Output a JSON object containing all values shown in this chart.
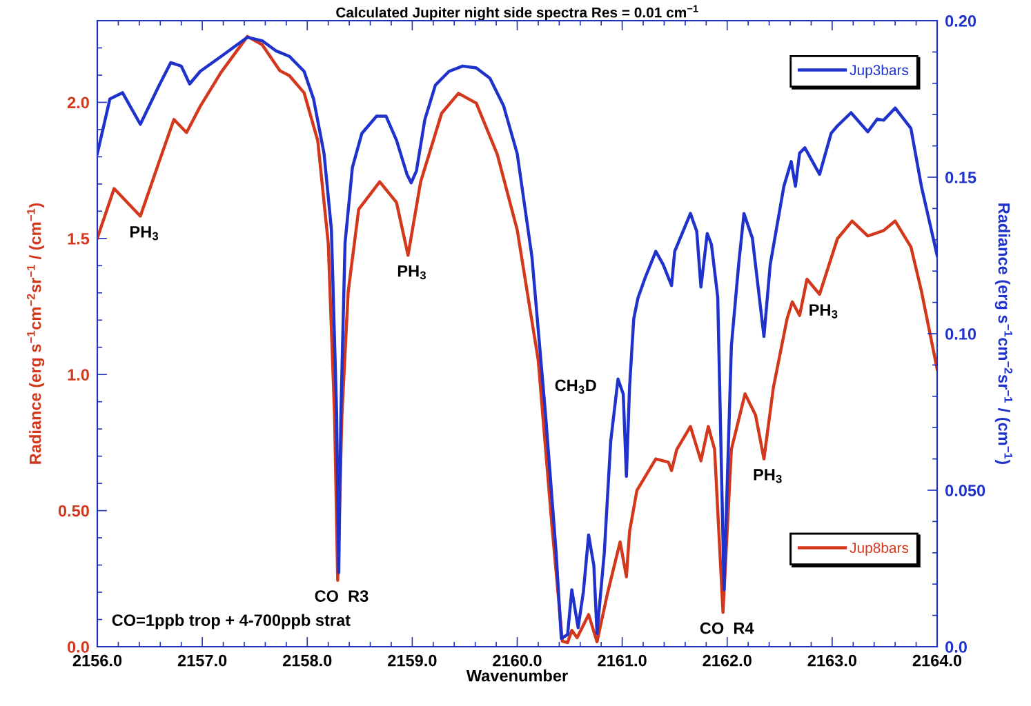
{
  "chart_data": {
    "type": "line",
    "title": "Calculated Jupiter night side spectra Res = 0.01 cm$^{−1}$",
    "xlabel": "Wavenumber",
    "ylabel": "Radiance (erg s$^{−1}$cm$^{−2}$sr$^{−1}$ / (cm$^{−1}$)",
    "y2label": "Radiance (erg s$^{−1}$cm$^{−2}$sr$^{−1}$ / (cm$^{−1}$)",
    "xlim": [
      2156.0,
      2164.0
    ],
    "xticks": [
      {
        "value": 2156.0,
        "label": "2156.0"
      },
      {
        "value": 2156.2,
        "label": null
      },
      {
        "value": 2156.4,
        "label": null
      },
      {
        "value": 2156.6,
        "label": null
      },
      {
        "value": 2156.8,
        "label": null
      },
      {
        "value": 2157.0,
        "label": "2157.0"
      },
      {
        "value": 2157.2,
        "label": null
      },
      {
        "value": 2157.4,
        "label": null
      },
      {
        "value": 2157.6,
        "label": null
      },
      {
        "value": 2157.8,
        "label": null
      },
      {
        "value": 2158.0,
        "label": "2158.0"
      },
      {
        "value": 2158.2,
        "label": null
      },
      {
        "value": 2158.4,
        "label": null
      },
      {
        "value": 2158.6,
        "label": null
      },
      {
        "value": 2158.8,
        "label": null
      },
      {
        "value": 2159.0,
        "label": "2159.0"
      },
      {
        "value": 2159.2,
        "label": null
      },
      {
        "value": 2159.4,
        "label": null
      },
      {
        "value": 2159.6,
        "label": null
      },
      {
        "value": 2159.8,
        "label": null
      },
      {
        "value": 2160.0,
        "label": "2160.0"
      },
      {
        "value": 2160.2,
        "label": null
      },
      {
        "value": 2160.4,
        "label": null
      },
      {
        "value": 2160.6,
        "label": null
      },
      {
        "value": 2160.8,
        "label": null
      },
      {
        "value": 2161.0,
        "label": "2161.0"
      },
      {
        "value": 2161.2,
        "label": null
      },
      {
        "value": 2161.4,
        "label": null
      },
      {
        "value": 2161.6,
        "label": null
      },
      {
        "value": 2161.8,
        "label": null
      },
      {
        "value": 2162.0,
        "label": "2162.0"
      },
      {
        "value": 2162.2,
        "label": null
      },
      {
        "value": 2162.4,
        "label": null
      },
      {
        "value": 2162.6,
        "label": null
      },
      {
        "value": 2162.8,
        "label": null
      },
      {
        "value": 2163.0,
        "label": "2163.0"
      },
      {
        "value": 2163.2,
        "label": null
      },
      {
        "value": 2163.4,
        "label": null
      },
      {
        "value": 2163.6,
        "label": null
      },
      {
        "value": 2163.8,
        "label": null
      },
      {
        "value": 2164.0,
        "label": "2164.0"
      }
    ],
    "ylim": [
      0,
      2.3
    ],
    "yticks": [
      {
        "value": 0.0,
        "label": "0.0"
      },
      {
        "value": 0.1,
        "label": null
      },
      {
        "value": 0.2,
        "label": null
      },
      {
        "value": 0.3,
        "label": null
      },
      {
        "value": 0.4,
        "label": null
      },
      {
        "value": 0.5,
        "label": "0.50"
      },
      {
        "value": 0.6,
        "label": null
      },
      {
        "value": 0.7,
        "label": null
      },
      {
        "value": 0.8,
        "label": null
      },
      {
        "value": 0.9,
        "label": null
      },
      {
        "value": 1.0,
        "label": "1.0"
      },
      {
        "value": 1.1,
        "label": null
      },
      {
        "value": 1.2,
        "label": null
      },
      {
        "value": 1.3,
        "label": null
      },
      {
        "value": 1.4,
        "label": null
      },
      {
        "value": 1.5,
        "label": "1.5"
      },
      {
        "value": 1.6,
        "label": null
      },
      {
        "value": 1.7,
        "label": null
      },
      {
        "value": 1.8,
        "label": null
      },
      {
        "value": 1.9,
        "label": null
      },
      {
        "value": 2.0,
        "label": "2.0"
      },
      {
        "value": 2.1,
        "label": null
      },
      {
        "value": 2.2,
        "label": null
      }
    ],
    "y2lim": [
      0,
      0.2
    ],
    "y2ticks": [
      {
        "value": 0.0,
        "label": "0.0"
      },
      {
        "value": 0.01,
        "label": null
      },
      {
        "value": 0.02,
        "label": null
      },
      {
        "value": 0.03,
        "label": null
      },
      {
        "value": 0.04,
        "label": null
      },
      {
        "value": 0.05,
        "label": "0.050"
      },
      {
        "value": 0.06,
        "label": null
      },
      {
        "value": 0.07,
        "label": null
      },
      {
        "value": 0.08,
        "label": null
      },
      {
        "value": 0.09,
        "label": null
      },
      {
        "value": 0.1,
        "label": "0.10"
      },
      {
        "value": 0.11,
        "label": null
      },
      {
        "value": 0.12,
        "label": null
      },
      {
        "value": 0.13,
        "label": null
      },
      {
        "value": 0.14,
        "label": null
      },
      {
        "value": 0.15,
        "label": "0.15"
      },
      {
        "value": 0.16,
        "label": null
      },
      {
        "value": 0.17,
        "label": null
      },
      {
        "value": 0.18,
        "label": null
      },
      {
        "value": 0.19,
        "label": null
      },
      {
        "value": 0.2,
        "label": "0.20"
      }
    ],
    "legend": "right",
    "grid": false,
    "line_style": "solid",
    "marker": "none",
    "series": [
      {
        "name": "Jup3bars",
        "color": "#1f32cc",
        "axis": "y2",
        "x": [
          2156.0,
          2156.12,
          2156.24,
          2156.41,
          2156.59,
          2156.7,
          2156.8,
          2156.88,
          2156.98,
          2157.18,
          2157.43,
          2157.57,
          2157.7,
          2157.83,
          2157.97,
          2158.06,
          2158.16,
          2158.23,
          2158.28,
          2158.3,
          2158.32,
          2158.36,
          2158.43,
          2158.52,
          2158.66,
          2158.75,
          2158.85,
          2158.95,
          2158.99,
          2159.04,
          2159.12,
          2159.22,
          2159.35,
          2159.48,
          2159.61,
          2159.74,
          2159.87,
          2160.0,
          2160.14,
          2160.27,
          2160.37,
          2160.42,
          2160.48,
          2160.52,
          2160.58,
          2160.63,
          2160.68,
          2160.73,
          2160.76,
          2160.83,
          2160.89,
          2160.96,
          2161.01,
          2161.04,
          2161.07,
          2161.11,
          2161.15,
          2161.22,
          2161.32,
          2161.39,
          2161.47,
          2161.5,
          2161.65,
          2161.71,
          2161.75,
          2161.81,
          2161.85,
          2161.91,
          2161.97,
          2162.04,
          2162.11,
          2162.16,
          2162.24,
          2162.35,
          2162.41,
          2162.54,
          2162.61,
          2162.65,
          2162.69,
          2162.74,
          2162.88,
          2162.99,
          2163.05,
          2163.18,
          2163.34,
          2163.43,
          2163.49,
          2163.6,
          2163.75,
          2163.85,
          2164.0
        ],
        "values": [
          0.1575,
          0.175,
          0.177,
          0.1669,
          0.1794,
          0.1866,
          0.1855,
          0.1798,
          0.1838,
          0.1886,
          0.1947,
          0.1936,
          0.1904,
          0.1886,
          0.1838,
          0.175,
          0.1575,
          0.1333,
          0.0741,
          0.0237,
          0.0741,
          0.129,
          0.1531,
          0.164,
          0.1695,
          0.1695,
          0.1618,
          0.1509,
          0.1482,
          0.152,
          0.1684,
          0.1794,
          0.1838,
          0.1855,
          0.1849,
          0.1816,
          0.1728,
          0.1575,
          0.1246,
          0.0741,
          0.0303,
          0.0026,
          0.0039,
          0.0182,
          0.0061,
          0.0175,
          0.0357,
          0.0259,
          0.0042,
          0.0303,
          0.0654,
          0.0855,
          0.0807,
          0.0544,
          0.0829,
          0.1048,
          0.1114,
          0.118,
          0.1263,
          0.1221,
          0.1154,
          0.1263,
          0.1384,
          0.1327,
          0.1149,
          0.132,
          0.1285,
          0.1116,
          0.0182,
          0.0961,
          0.1224,
          0.1384,
          0.1305,
          0.0991,
          0.1221,
          0.1471,
          0.155,
          0.1471,
          0.1577,
          0.1594,
          0.1509,
          0.164,
          0.1664,
          0.1706,
          0.1645,
          0.1686,
          0.1682,
          0.1721,
          0.1656,
          0.1471,
          0.125
        ]
      },
      {
        "name": "Jup8bars",
        "color": "#d4381c",
        "axis": "y",
        "x": [
          2156.0,
          2156.16,
          2156.41,
          2156.59,
          2156.73,
          2156.85,
          2156.98,
          2157.18,
          2157.43,
          2157.57,
          2157.74,
          2157.83,
          2157.97,
          2158.1,
          2158.2,
          2158.26,
          2158.29,
          2158.33,
          2158.39,
          2158.49,
          2158.69,
          2158.85,
          2158.96,
          2159.08,
          2159.28,
          2159.44,
          2159.61,
          2159.81,
          2160.0,
          2160.2,
          2160.33,
          2160.43,
          2160.48,
          2160.52,
          2160.57,
          2160.68,
          2160.76,
          2160.86,
          2160.98,
          2161.04,
          2161.07,
          2161.14,
          2161.32,
          2161.44,
          2161.47,
          2161.52,
          2161.65,
          2161.75,
          2161.82,
          2161.88,
          2161.96,
          2162.04,
          2162.17,
          2162.27,
          2162.35,
          2162.44,
          2162.57,
          2162.62,
          2162.69,
          2162.76,
          2162.88,
          2163.05,
          2163.19,
          2163.34,
          2163.49,
          2163.6,
          2163.75,
          2163.85,
          2164.0
        ],
        "values": [
          1.501,
          1.683,
          1.582,
          1.783,
          1.937,
          1.889,
          1.985,
          2.111,
          2.242,
          2.212,
          2.116,
          2.098,
          2.035,
          1.859,
          1.481,
          0.851,
          0.244,
          0.851,
          1.305,
          1.607,
          1.708,
          1.632,
          1.438,
          1.708,
          1.96,
          2.033,
          1.997,
          1.809,
          1.531,
          1.053,
          0.448,
          0.02,
          0.015,
          0.06,
          0.033,
          0.118,
          0.018,
          0.196,
          0.385,
          0.257,
          0.423,
          0.574,
          0.69,
          0.678,
          0.647,
          0.725,
          0.809,
          0.683,
          0.809,
          0.725,
          0.126,
          0.725,
          0.929,
          0.851,
          0.69,
          0.952,
          1.204,
          1.267,
          1.217,
          1.35,
          1.295,
          1.499,
          1.564,
          1.509,
          1.529,
          1.564,
          1.469,
          1.307,
          1.02
        ]
      }
    ],
    "annotations": [
      {
        "text": "PH$_{3}$",
        "x": 2156.41,
        "y": 1.582
      },
      {
        "text": "PH$_{3}$",
        "x": 2158.96,
        "y": 1.438
      },
      {
        "text": "CO  R3",
        "x": 2158.29,
        "y": 0.244
      },
      {
        "text": "CH$_{3}$D",
        "x": 2160.96,
        "y": 0.983
      },
      {
        "text": "CO  R4",
        "x": 2161.96,
        "y": 0.126
      },
      {
        "text": "PH$_{3}$",
        "x": 2162.35,
        "y": 0.69
      },
      {
        "text": "PH$_{3}$",
        "x": 2162.88,
        "y": 1.295
      },
      "CO=1ppb trop + 4-700ppb strat"
    ]
  }
}
